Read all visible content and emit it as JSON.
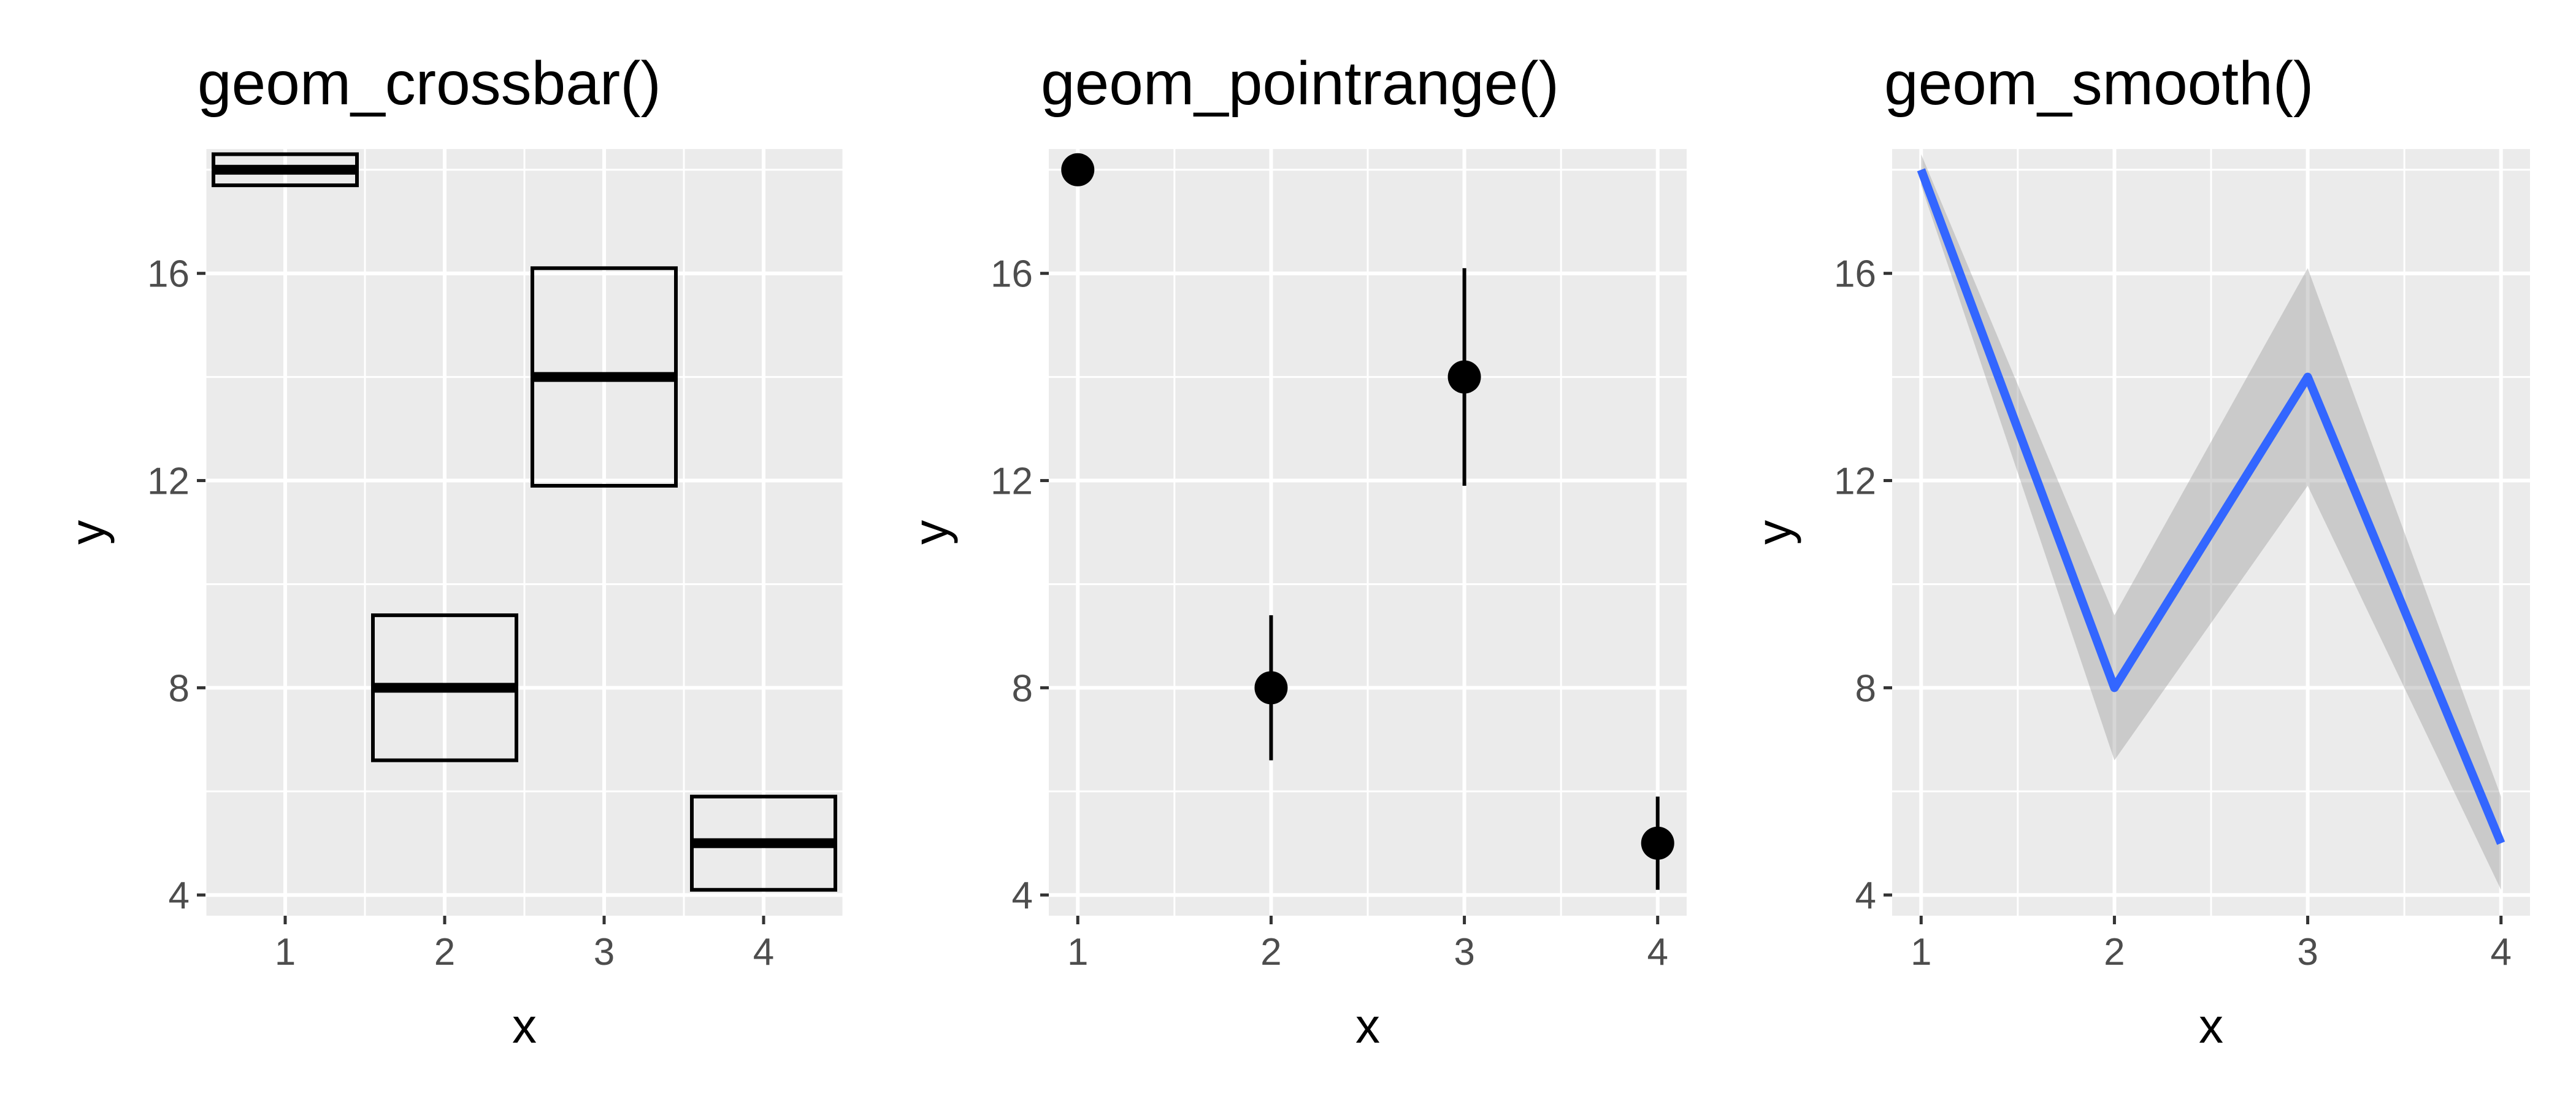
{
  "chart_data": [
    {
      "type": "crossbar",
      "title": "geom_crossbar()",
      "xlabel": "x",
      "ylabel": "y",
      "xlim": [
        0.5,
        4.5
      ],
      "ylim": [
        3.6,
        18.4
      ],
      "x_ticks": [
        1,
        2,
        3,
        4
      ],
      "y_ticks": [
        4,
        8,
        12,
        16
      ],
      "grid": true,
      "bar_width": 0.9,
      "points": [
        {
          "x": 1,
          "y": 18,
          "ymin": 17.7,
          "ymax": 18.3
        },
        {
          "x": 2,
          "y": 8,
          "ymin": 6.6,
          "ymax": 9.4
        },
        {
          "x": 3,
          "y": 14,
          "ymin": 11.9,
          "ymax": 16.1
        },
        {
          "x": 4,
          "y": 5,
          "ymin": 4.1,
          "ymax": 5.9
        }
      ]
    },
    {
      "type": "pointrange",
      "title": "geom_pointrange()",
      "xlabel": "x",
      "ylabel": "y",
      "xlim": [
        0.85,
        4.15
      ],
      "ylim": [
        3.6,
        18.4
      ],
      "x_ticks": [
        1,
        2,
        3,
        4
      ],
      "y_ticks": [
        4,
        8,
        12,
        16
      ],
      "grid": true,
      "points": [
        {
          "x": 1,
          "y": 18,
          "ymin": 17.7,
          "ymax": 18.3
        },
        {
          "x": 2,
          "y": 8,
          "ymin": 6.6,
          "ymax": 9.4
        },
        {
          "x": 3,
          "y": 14,
          "ymin": 11.9,
          "ymax": 16.1
        },
        {
          "x": 4,
          "y": 5,
          "ymin": 4.1,
          "ymax": 5.9
        }
      ]
    },
    {
      "type": "smooth",
      "title": "geom_smooth()",
      "xlabel": "x",
      "ylabel": "y",
      "xlim": [
        0.85,
        4.15
      ],
      "ylim": [
        3.6,
        18.4
      ],
      "x_ticks": [
        1,
        2,
        3,
        4
      ],
      "y_ticks": [
        4,
        8,
        12,
        16
      ],
      "grid": true,
      "line_color": "#3366ff",
      "points": [
        {
          "x": 1,
          "y": 18,
          "ymin": 17.7,
          "ymax": 18.3
        },
        {
          "x": 2,
          "y": 8,
          "ymin": 6.6,
          "ymax": 9.4
        },
        {
          "x": 3,
          "y": 14,
          "ymin": 11.9,
          "ymax": 16.1
        },
        {
          "x": 4,
          "y": 5,
          "ymin": 4.1,
          "ymax": 5.9
        }
      ]
    }
  ],
  "colors": {
    "panel_background": "#ebebeb",
    "grid": "#ffffff",
    "ribbon": "#999999",
    "mark": "#000000"
  }
}
